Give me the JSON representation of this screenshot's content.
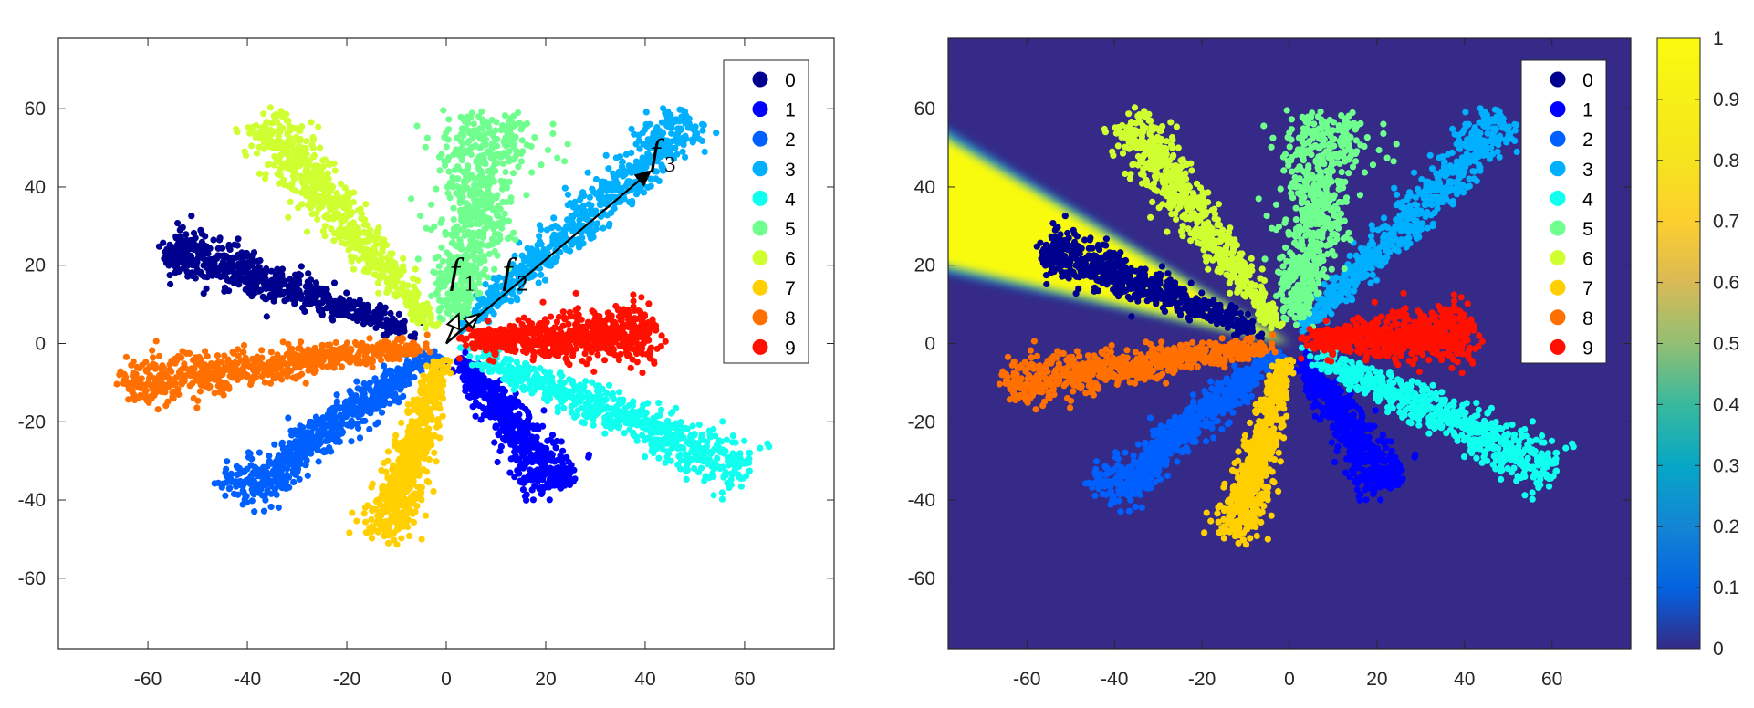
{
  "chart_data": [
    {
      "type": "scatter",
      "xlim": [
        -78,
        78
      ],
      "ylim": [
        -78,
        78
      ],
      "xticks": [
        -60,
        -40,
        -20,
        0,
        20,
        40,
        60
      ],
      "yticks": [
        -60,
        -40,
        -20,
        0,
        20,
        40,
        60
      ],
      "legend_position": "top-right",
      "classes": [
        {
          "label": "0",
          "color": "#00008f",
          "angle_deg": 156,
          "r_start": 8,
          "r_end": 61,
          "width": 2.6
        },
        {
          "label": "1",
          "color": "#0000ff",
          "angle_deg": -58,
          "r_start": 5,
          "r_end": 43,
          "width": 2.6
        },
        {
          "label": "2",
          "color": "#0060ff",
          "angle_deg": -137,
          "r_start": 4,
          "r_end": 57,
          "width": 2.8
        },
        {
          "label": "3",
          "color": "#00b0ff",
          "angle_deg": 49.5,
          "r_start": 5,
          "r_end": 76,
          "width": 2.6
        },
        {
          "label": "4",
          "color": "#10ffef",
          "angle_deg": -28,
          "r_start": 6,
          "r_end": 69,
          "width": 2.8
        },
        {
          "label": "5",
          "color": "#70ff8f",
          "angle_deg": 80,
          "r_start": 6,
          "r_end": 59,
          "width": 4.8
        },
        {
          "label": "6",
          "color": "#cfff30",
          "angle_deg": 123,
          "r_start": 6,
          "r_end": 68,
          "width": 2.8
        },
        {
          "label": "7",
          "color": "#ffcf00",
          "angle_deg": -104,
          "r_start": 5,
          "r_end": 51,
          "width": 2.4
        },
        {
          "label": "8",
          "color": "#ff7000",
          "angle_deg": 189,
          "r_start": 4,
          "r_end": 65,
          "width": 2.6
        },
        {
          "label": "9",
          "color": "#ff1000",
          "angle_deg": 4,
          "r_start": 5,
          "r_end": 42,
          "width": 3.2
        }
      ],
      "vectors": [
        {
          "name": "f",
          "sub": "1",
          "end": [
            2.5,
            7.5
          ]
        },
        {
          "name": "f",
          "sub": "2",
          "end": [
            6.5,
            7.5
          ]
        },
        {
          "name": "f",
          "sub": "3",
          "end": [
            41,
            44
          ]
        }
      ]
    },
    {
      "type": "scatter",
      "xlim": [
        -78,
        78
      ],
      "ylim": [
        -78,
        78
      ],
      "xticks": [
        -60,
        -40,
        -20,
        0,
        20,
        40,
        60
      ],
      "yticks": [
        -60,
        -40,
        -20,
        0,
        20,
        40,
        60
      ],
      "legend_position": "top-right",
      "background": "heatmap of class-0 response, high in a wedge pointing toward the upper-left",
      "highlight_wedge_deg": [
        145,
        167
      ],
      "colorbar": {
        "min": 0,
        "max": 1,
        "ticks": [
          "0",
          "0.1",
          "0.2",
          "0.3",
          "0.4",
          "0.5",
          "0.6",
          "0.7",
          "0.8",
          "0.9",
          "1"
        ]
      }
    }
  ],
  "legend": {
    "title": "",
    "items": [
      {
        "label": "0",
        "color": "#00008f"
      },
      {
        "label": "1",
        "color": "#0000ff"
      },
      {
        "label": "2",
        "color": "#0060ff"
      },
      {
        "label": "3",
        "color": "#00b0ff"
      },
      {
        "label": "4",
        "color": "#10ffef"
      },
      {
        "label": "5",
        "color": "#70ff8f"
      },
      {
        "label": "6",
        "color": "#cfff30"
      },
      {
        "label": "7",
        "color": "#ffcf00"
      },
      {
        "label": "8",
        "color": "#ff7000"
      },
      {
        "label": "9",
        "color": "#ff1000"
      }
    ]
  },
  "colors": {
    "axis": "#262626",
    "heat_low": "#352a87",
    "heat_high": "#f9fb0e"
  }
}
